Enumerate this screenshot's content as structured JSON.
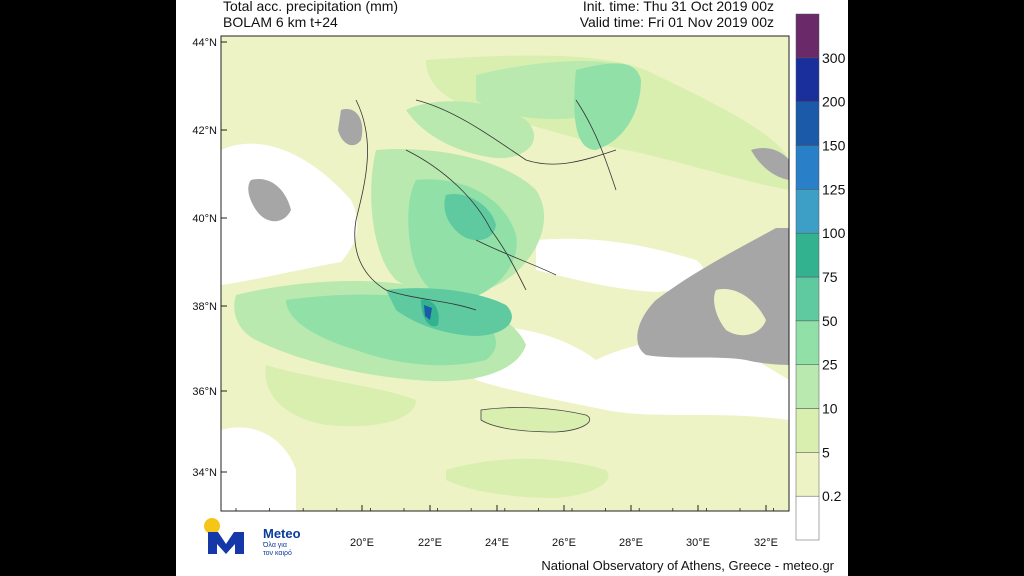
{
  "header": {
    "line1_left": "Total acc. precipitation (mm)",
    "line2_left": "BOLAM 6 km t+24",
    "line1_right": "Init. time: Thu 31 Oct 2019 00z",
    "line2_right": "Valid time: Fri 01 Nov 2019 00z"
  },
  "footer": "National Observatory of Athens, Greece - meteo.gr",
  "logo": {
    "name": "Meteo",
    "tagline_1": "Όλα για",
    "tagline_2": "τον καιρό"
  },
  "axes": {
    "lat_labels": [
      "44°N",
      "42°N",
      "40°N",
      "38°N",
      "36°N",
      "34°N"
    ],
    "lon_labels": [
      "20°E",
      "22°E",
      "24°E",
      "26°E",
      "28°E",
      "30°E",
      "32°E"
    ]
  },
  "colorbar": {
    "levels": [
      "0.2",
      "5",
      "10",
      "25",
      "50",
      "75",
      "100",
      "125",
      "150",
      "200",
      "300"
    ],
    "colors": [
      "#ffffff",
      "#eef3c5",
      "#d9efb0",
      "#b9e9ae",
      "#90e0a8",
      "#5fc9a0",
      "#33b28f",
      "#3d9fc6",
      "#2a80c8",
      "#1a5aa8",
      "#1a2f9c",
      "#6a2a6a"
    ]
  },
  "map_colors": {
    "land_gray": "#a6a6a6",
    "sea": "#ffffff"
  }
}
